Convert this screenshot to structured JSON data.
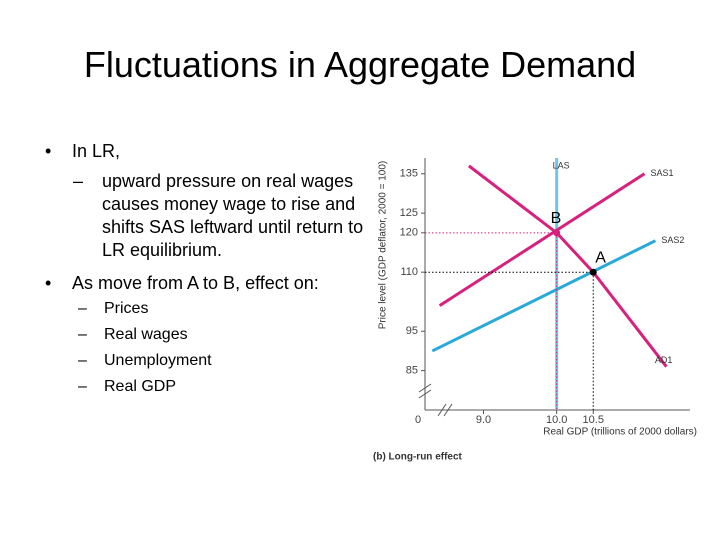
{
  "title": "Fluctuations in Aggregate Demand",
  "bullets": [
    {
      "text": "In LR,",
      "subs": [
        "upward pressure on real wages causes money wage to rise and shifts SAS leftward until return to LR equilibrium."
      ]
    },
    {
      "text": "As move from A to B, effect on:",
      "subs": [
        "Prices",
        "Real wages",
        "Unemployment",
        "Real GDP"
      ]
    }
  ],
  "chart_data": {
    "type": "line",
    "y_label": "Price level (GDP deflator, 2000 = 100)",
    "x_label": "Real GDP (trillions of 2000 dollars)",
    "caption": "(b) Long-run effect",
    "origin_label": "0",
    "xlim": [
      8.2,
      11.85
    ],
    "ylim": [
      75,
      139
    ],
    "xticks": [
      {
        "value": 9,
        "label": "9.0"
      },
      {
        "value": 10,
        "label": "10.0"
      },
      10.5
    ],
    "yticks": [
      85,
      95,
      110,
      120,
      125,
      135
    ],
    "series": [
      {
        "name": "LAS",
        "color": "#6ec6e6",
        "x": [
          10,
          10
        ],
        "values": [
          139,
          75
        ]
      },
      {
        "name": "SAS1",
        "color": "#d6217d",
        "x": [
          8.4,
          11.2
        ],
        "values": [
          101.5,
          135
        ]
      },
      {
        "name": "SAS2",
        "color": "#29a9d9",
        "x": [
          8.3,
          11.35
        ],
        "values": [
          90,
          118
        ]
      },
      {
        "name": "AD1",
        "color": "#d6217d",
        "x": [
          8.8,
          10,
          10.5,
          11.5
        ],
        "values": [
          137,
          120,
          110,
          86
        ]
      }
    ],
    "points": [
      {
        "label": "B",
        "x": 10,
        "y": 120,
        "color": "#d6217d"
      },
      {
        "label": "A",
        "x": 10.5,
        "y": 110,
        "color": "#000000"
      }
    ]
  }
}
